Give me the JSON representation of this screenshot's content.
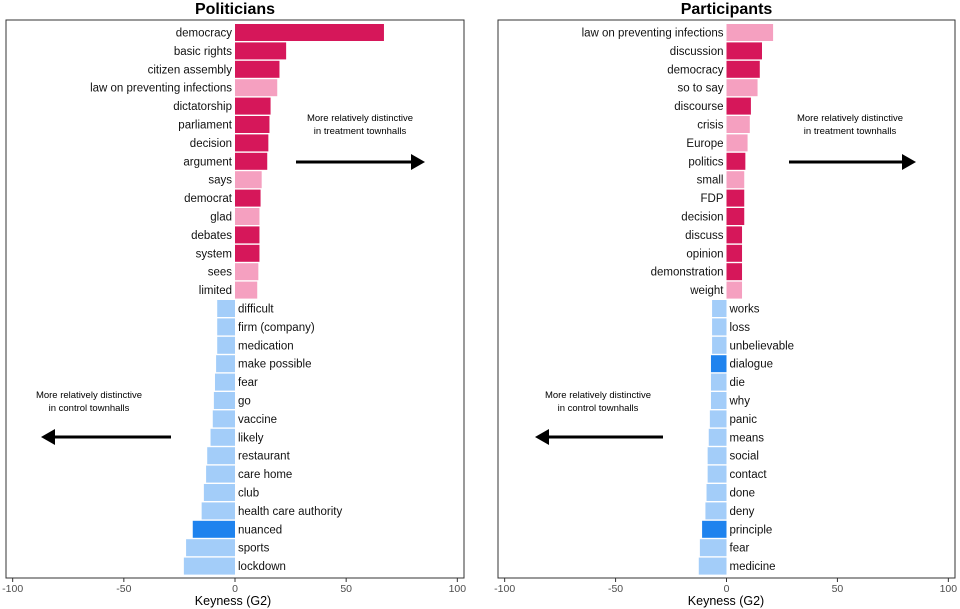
{
  "chart_data": [
    {
      "type": "bar",
      "orientation": "horizontal",
      "title": "Politicians",
      "xlabel": "Keyness (G2)",
      "xlim": [
        -103,
        103
      ],
      "xticks": [
        -100,
        -50,
        0,
        50,
        100
      ],
      "xtick_labels": [
        "-100",
        "-50",
        "0",
        "50",
        "100"
      ],
      "annotation_right": [
        "More relatively distinctive",
        "in treatment townhalls"
      ],
      "annotation_left": [
        "More relatively distinctive",
        "in control townhalls"
      ],
      "colors": {
        "target_sig": "#d6175a",
        "target": "#f5a0c0",
        "reference": "#a3cdf9",
        "reference_sig": "#1f83ee"
      },
      "bars": [
        {
          "term": "democracy",
          "value": 67,
          "group": "target_sig"
        },
        {
          "term": "basic rights",
          "value": 23,
          "group": "target_sig"
        },
        {
          "term": "citizen assembly",
          "value": 20,
          "group": "target_sig"
        },
        {
          "term": "law on preventing infections",
          "value": 19,
          "group": "target"
        },
        {
          "term": "dictatorship",
          "value": 16,
          "group": "target_sig"
        },
        {
          "term": "parliament",
          "value": 15.5,
          "group": "target_sig"
        },
        {
          "term": "decision",
          "value": 15,
          "group": "target_sig"
        },
        {
          "term": "argument",
          "value": 14.5,
          "group": "target_sig"
        },
        {
          "term": "says",
          "value": 12,
          "group": "target"
        },
        {
          "term": "democrat",
          "value": 11.5,
          "group": "target_sig"
        },
        {
          "term": "glad",
          "value": 11,
          "group": "target"
        },
        {
          "term": "debates",
          "value": 11,
          "group": "target_sig"
        },
        {
          "term": "system",
          "value": 11,
          "group": "target_sig"
        },
        {
          "term": "sees",
          "value": 10.5,
          "group": "target"
        },
        {
          "term": "limited",
          "value": 10,
          "group": "target"
        },
        {
          "term": "difficult",
          "value": -8,
          "group": "reference"
        },
        {
          "term": "firm (company)",
          "value": -8,
          "group": "reference"
        },
        {
          "term": "medication",
          "value": -8,
          "group": "reference"
        },
        {
          "term": "make possible",
          "value": -8.5,
          "group": "reference"
        },
        {
          "term": "fear",
          "value": -9,
          "group": "reference"
        },
        {
          "term": "go",
          "value": -9.5,
          "group": "reference"
        },
        {
          "term": "vaccine",
          "value": -10,
          "group": "reference"
        },
        {
          "term": "likely",
          "value": -11,
          "group": "reference"
        },
        {
          "term": "restaurant",
          "value": -12.5,
          "group": "reference"
        },
        {
          "term": "care home",
          "value": -13,
          "group": "reference"
        },
        {
          "term": "club",
          "value": -14,
          "group": "reference"
        },
        {
          "term": "health care authority",
          "value": -15,
          "group": "reference"
        },
        {
          "term": "nuanced",
          "value": -19,
          "group": "reference_sig"
        },
        {
          "term": "sports",
          "value": -22,
          "group": "reference"
        },
        {
          "term": "lockdown",
          "value": -23,
          "group": "reference"
        }
      ]
    },
    {
      "type": "bar",
      "orientation": "horizontal",
      "title": "Participants",
      "xlabel": "Keyness (G2)",
      "xlim": [
        -103,
        103
      ],
      "xticks": [
        -100,
        -50,
        0,
        50,
        100
      ],
      "xtick_labels": [
        "-100",
        "-50",
        "0",
        "50",
        "100"
      ],
      "annotation_right": [
        "More relatively distinctive",
        "in treatment townhalls"
      ],
      "annotation_left": [
        "More relatively distinctive",
        "in control townhalls"
      ],
      "colors": {
        "target_sig": "#d6175a",
        "target": "#f5a0c0",
        "reference": "#a3cdf9",
        "reference_sig": "#1f83ee"
      },
      "bars": [
        {
          "term": "law on preventing infections",
          "value": 21,
          "group": "target"
        },
        {
          "term": "discussion",
          "value": 16,
          "group": "target_sig"
        },
        {
          "term": "democracy",
          "value": 15,
          "group": "target_sig"
        },
        {
          "term": "so to say",
          "value": 14,
          "group": "target"
        },
        {
          "term": "discourse",
          "value": 11,
          "group": "target_sig"
        },
        {
          "term": "crisis",
          "value": 10.5,
          "group": "target"
        },
        {
          "term": "Europe",
          "value": 9.5,
          "group": "target"
        },
        {
          "term": "politics",
          "value": 8.5,
          "group": "target_sig"
        },
        {
          "term": "small",
          "value": 8,
          "group": "target"
        },
        {
          "term": "FDP",
          "value": 8,
          "group": "target_sig"
        },
        {
          "term": "decision",
          "value": 8,
          "group": "target_sig"
        },
        {
          "term": "discuss",
          "value": 7,
          "group": "target_sig"
        },
        {
          "term": "opinion",
          "value": 7,
          "group": "target_sig"
        },
        {
          "term": "demonstration",
          "value": 7,
          "group": "target_sig"
        },
        {
          "term": "weight",
          "value": 7,
          "group": "target"
        },
        {
          "term": "works",
          "value": -6.5,
          "group": "reference"
        },
        {
          "term": "loss",
          "value": -6.5,
          "group": "reference"
        },
        {
          "term": "unbelievable",
          "value": -6.5,
          "group": "reference"
        },
        {
          "term": "dialogue",
          "value": -7,
          "group": "reference_sig"
        },
        {
          "term": "die",
          "value": -7,
          "group": "reference"
        },
        {
          "term": "why",
          "value": -7,
          "group": "reference"
        },
        {
          "term": "panic",
          "value": -7.5,
          "group": "reference"
        },
        {
          "term": "means",
          "value": -8,
          "group": "reference"
        },
        {
          "term": "social",
          "value": -8.5,
          "group": "reference"
        },
        {
          "term": "contact",
          "value": -8.5,
          "group": "reference"
        },
        {
          "term": "done",
          "value": -9,
          "group": "reference"
        },
        {
          "term": "deny",
          "value": -9.5,
          "group": "reference"
        },
        {
          "term": "principle",
          "value": -11,
          "group": "reference_sig"
        },
        {
          "term": "fear",
          "value": -12,
          "group": "reference"
        },
        {
          "term": "medicine",
          "value": -12.5,
          "group": "reference"
        }
      ]
    }
  ]
}
